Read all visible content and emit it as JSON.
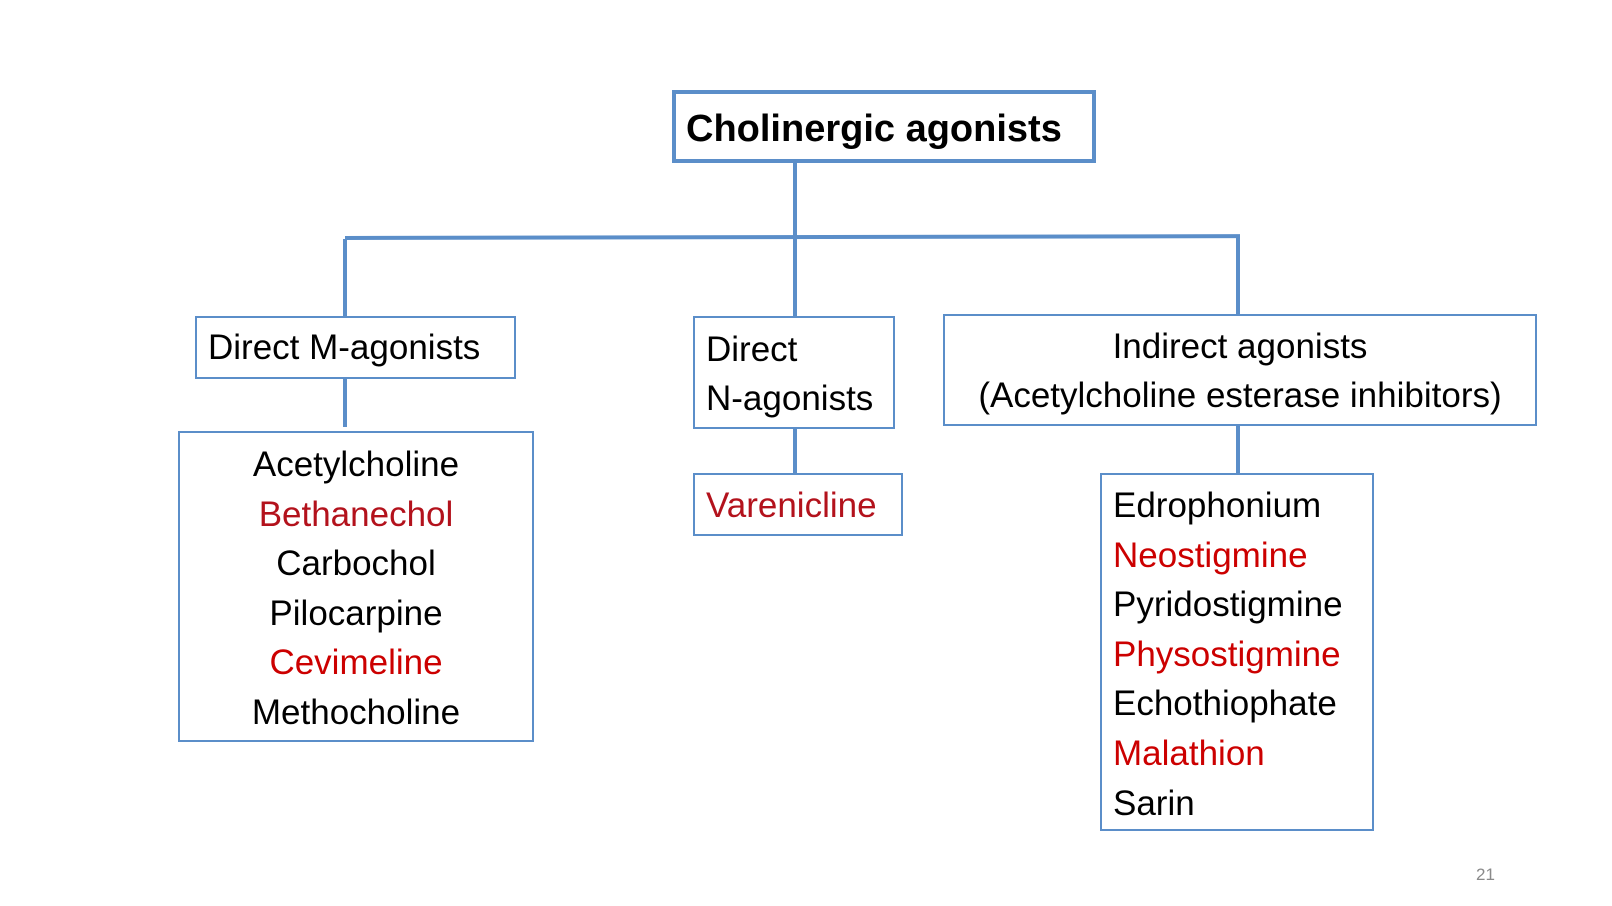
{
  "root": {
    "label": "Cholinergic agonists"
  },
  "categories": {
    "direct_m": {
      "label": "Direct M-agonists",
      "items": [
        "Acetylcholine",
        "Bethanechol",
        "Carbochol",
        "Pilocarpine",
        "Cevimeline",
        "Methocholine"
      ]
    },
    "direct_n": {
      "label_line1": "Direct",
      "label_line2": "N-agonists",
      "items": [
        "Varenicline"
      ]
    },
    "indirect": {
      "label_line1": "Indirect agonists",
      "label_line2": "(Acetylcholine esterase inhibitors)",
      "items": [
        "Edrophonium",
        "Neostigmine",
        "Pyridostigmine",
        "Physostigmine",
        "Echothiophate",
        "Malathion",
        "Sarin"
      ]
    }
  },
  "highlighted_items": [
    "Bethanechol",
    "Cevimeline",
    "Varenicline",
    "Neostigmine",
    "Physostigmine",
    "Malathion"
  ],
  "colors": {
    "box_border": "#5b8ec9",
    "highlight_red": "#cc0000",
    "highlight_dark_red": "#b3121c",
    "text": "#000000",
    "page_number": "#8a8a8a"
  },
  "page_number": "21"
}
